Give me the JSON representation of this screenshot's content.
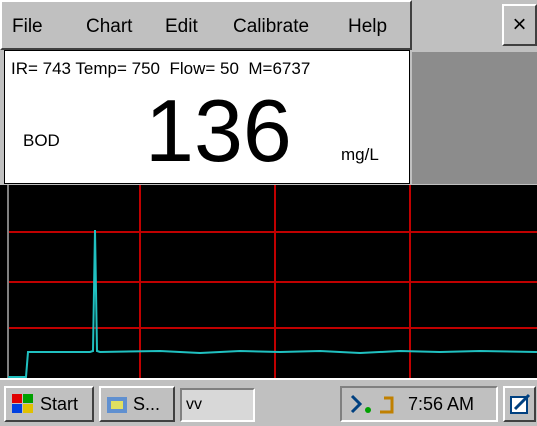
{
  "menu": [
    "File",
    "Chart",
    "Edit",
    "Calibrate",
    "Help"
  ],
  "close": "×",
  "readout": {
    "status": "IR= 743 Temp= 750  Flow= 50  M=6737",
    "label": "BOD",
    "value": "136",
    "unit": "mg/L"
  },
  "taskbar": {
    "start": "Start",
    "task": "S...",
    "field": "vv",
    "clock": "7:56 AM"
  }
}
